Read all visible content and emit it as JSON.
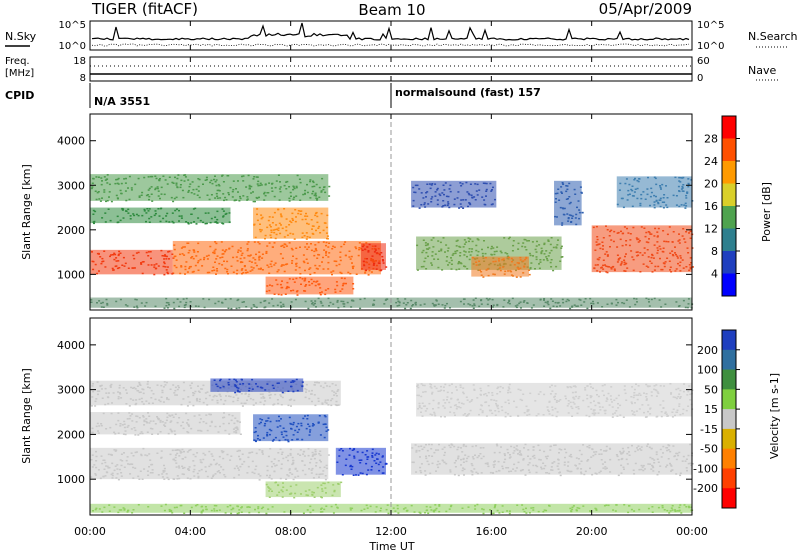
{
  "header": {
    "radar": "TIGER (fitACF)",
    "beam": "Beam 10",
    "date": "05/Apr/2009"
  },
  "aux": {
    "nsky_label": "N.Sky",
    "nsearch_label": "N.Search",
    "noise_ticks": [
      "10^5",
      "10^0"
    ],
    "freq_label_line1": "Freq.",
    "freq_label_line2": "[MHz]",
    "freq_ticks": [
      "18",
      "8"
    ],
    "nave_label": "Nave",
    "nave_ticks": [
      "60",
      "0"
    ],
    "cpid_label": "CPID",
    "cpid_segments": [
      {
        "text": "N/A 3551",
        "start_hour": 0
      },
      {
        "text": "normalsound (fast) 157",
        "start_hour": 12
      }
    ]
  },
  "chart_data": [
    {
      "type": "heatmap",
      "ylabel": "Slant Range [km]",
      "yticks": [
        "1000",
        "2000",
        "3000",
        "4000"
      ],
      "ylim": [
        200,
        4600
      ],
      "xlim": [
        0,
        24
      ],
      "colorbar": {
        "label": "Power [dB]",
        "ticks": [
          "28",
          "24",
          "20",
          "16",
          "12",
          "8",
          "4"
        ],
        "colors": [
          "#ff0000",
          "#ff5000",
          "#ff9a00",
          "#d9cf2a",
          "#4fa34f",
          "#2e7f8e",
          "#1f3fbf",
          "#0000ff"
        ]
      },
      "bands": [
        {
          "t0": 0,
          "t1": 3.3,
          "r0": 1000,
          "r1": 1550,
          "color": "#f23a10"
        },
        {
          "t0": 3.3,
          "t1": 11.6,
          "r0": 1000,
          "r1": 1750,
          "color": "#ff6a10"
        },
        {
          "t0": 7.0,
          "t1": 10.5,
          "r0": 550,
          "r1": 950,
          "color": "#ff5a10"
        },
        {
          "t0": 0,
          "t1": 5.6,
          "r0": 2150,
          "r1": 2500,
          "color": "#2d8a3e"
        },
        {
          "t0": 0,
          "t1": 9.5,
          "r0": 2650,
          "r1": 3250,
          "color": "#4d9a4d"
        },
        {
          "t0": 6.5,
          "t1": 9.5,
          "r0": 1800,
          "r1": 2500,
          "color": "#ff8a10"
        },
        {
          "t0": 10.8,
          "t1": 11.8,
          "r0": 1100,
          "r1": 1700,
          "color": "#ee2a10"
        },
        {
          "t0": 12.8,
          "t1": 16.2,
          "r0": 2500,
          "r1": 3100,
          "color": "#2f4fb0"
        },
        {
          "t0": 13.0,
          "t1": 18.8,
          "r0": 1100,
          "r1": 1850,
          "color": "#6aa04a"
        },
        {
          "t0": 15.2,
          "t1": 17.5,
          "r0": 950,
          "r1": 1400,
          "color": "#f07a20"
        },
        {
          "t0": 20.0,
          "t1": 24,
          "r0": 1050,
          "r1": 2100,
          "color": "#f04a18"
        },
        {
          "t0": 18.5,
          "t1": 19.6,
          "r0": 2100,
          "r1": 3100,
          "color": "#2f5fb0"
        },
        {
          "t0": 21.0,
          "t1": 24,
          "r0": 2500,
          "r1": 3200,
          "color": "#3f7fb0"
        },
        {
          "t0": 0,
          "t1": 24,
          "r0": 250,
          "r1": 480,
          "color": "#5a8a6a"
        }
      ]
    },
    {
      "type": "heatmap",
      "ylabel": "Slant Range [km]",
      "yticks": [
        "1000",
        "2000",
        "3000",
        "4000"
      ],
      "ylim": [
        200,
        4600
      ],
      "xlim": [
        0,
        24
      ],
      "colorbar": {
        "label": "Velocity [m s-1]",
        "ticks": [
          "200",
          "100",
          "50",
          "15",
          "-15",
          "-50",
          "-100",
          "-200"
        ],
        "colors": [
          "#1f3fbf",
          "#2f6f9f",
          "#3f8f3f",
          "#7fcf3f",
          "#c8c8c8",
          "#d9b000",
          "#ff8000",
          "#ff4000",
          "#ff0000"
        ]
      },
      "bands": [
        {
          "t0": 0,
          "t1": 9.5,
          "r0": 1000,
          "r1": 1700,
          "color": "#c8c8c8"
        },
        {
          "t0": 0,
          "t1": 6.0,
          "r0": 2000,
          "r1": 2500,
          "color": "#c8c8c8"
        },
        {
          "t0": 0,
          "t1": 10.0,
          "r0": 2650,
          "r1": 3200,
          "color": "#c8c8c8"
        },
        {
          "t0": 4.8,
          "t1": 8.5,
          "r0": 2950,
          "r1": 3250,
          "color": "#2040c0"
        },
        {
          "t0": 6.5,
          "t1": 9.5,
          "r0": 1850,
          "r1": 2450,
          "color": "#2050c0"
        },
        {
          "t0": 9.8,
          "t1": 11.8,
          "r0": 1100,
          "r1": 1700,
          "color": "#1838d0"
        },
        {
          "t0": 12.8,
          "t1": 24,
          "r0": 1100,
          "r1": 1800,
          "color": "#c8c8c8"
        },
        {
          "t0": 13.0,
          "t1": 24,
          "r0": 2400,
          "r1": 3150,
          "color": "#cfcfcf"
        },
        {
          "t0": 0,
          "t1": 24,
          "r0": 250,
          "r1": 450,
          "color": "#8fcf5f"
        },
        {
          "t0": 7.0,
          "t1": 10.0,
          "r0": 600,
          "r1": 950,
          "color": "#9fcf6f"
        }
      ]
    }
  ],
  "xaxis": {
    "label": "Time UT",
    "ticks": [
      "00:00",
      "04:00",
      "08:00",
      "12:00",
      "16:00",
      "20:00",
      "00:00"
    ]
  }
}
